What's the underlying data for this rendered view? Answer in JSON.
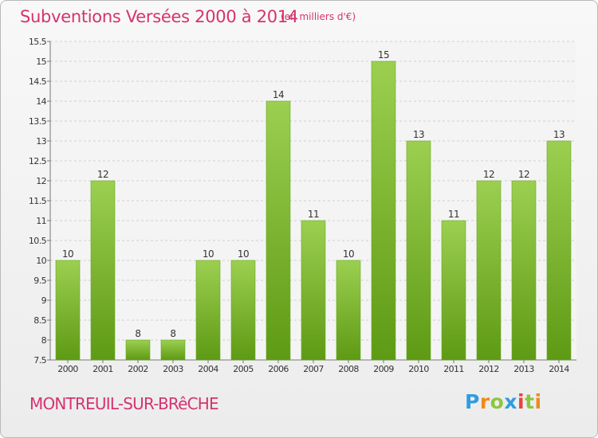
{
  "title": "Subventions Versées 2000 à 2014",
  "subtitle": "(en milliers d'€)",
  "commune": "MONTREUIL-SUR-BRêCHE",
  "logo": {
    "letters": [
      "P",
      "r",
      "o",
      "x",
      "i",
      "t",
      "i"
    ],
    "colors": [
      "#2e9de0",
      "#f08a1c",
      "#8cc63f",
      "#2e9de0",
      "#e8413c",
      "#8cc63f",
      "#f08a1c"
    ]
  },
  "colors": {
    "accent": "#d5336f",
    "bar_light": "#9ccf50",
    "bar_dark": "#5e9a14"
  },
  "chart_data": {
    "type": "bar",
    "categories": [
      "2000",
      "2001",
      "2002",
      "2003",
      "2004",
      "2005",
      "2006",
      "2007",
      "2008",
      "2009",
      "2010",
      "2011",
      "2012",
      "2013",
      "2014"
    ],
    "values": [
      10,
      12,
      8,
      8,
      10,
      10,
      14,
      11,
      10,
      15,
      13,
      11,
      12,
      12,
      13
    ],
    "y_ticks": [
      "7.5",
      "8",
      "8.5",
      "9",
      "9.5",
      "10",
      "10.5",
      "11",
      "11.5",
      "12",
      "12.5",
      "13",
      "13.5",
      "14",
      "14.5",
      "15",
      "15.5"
    ],
    "ylim": [
      7.5,
      15.5
    ],
    "grid": true,
    "legend": "none"
  }
}
